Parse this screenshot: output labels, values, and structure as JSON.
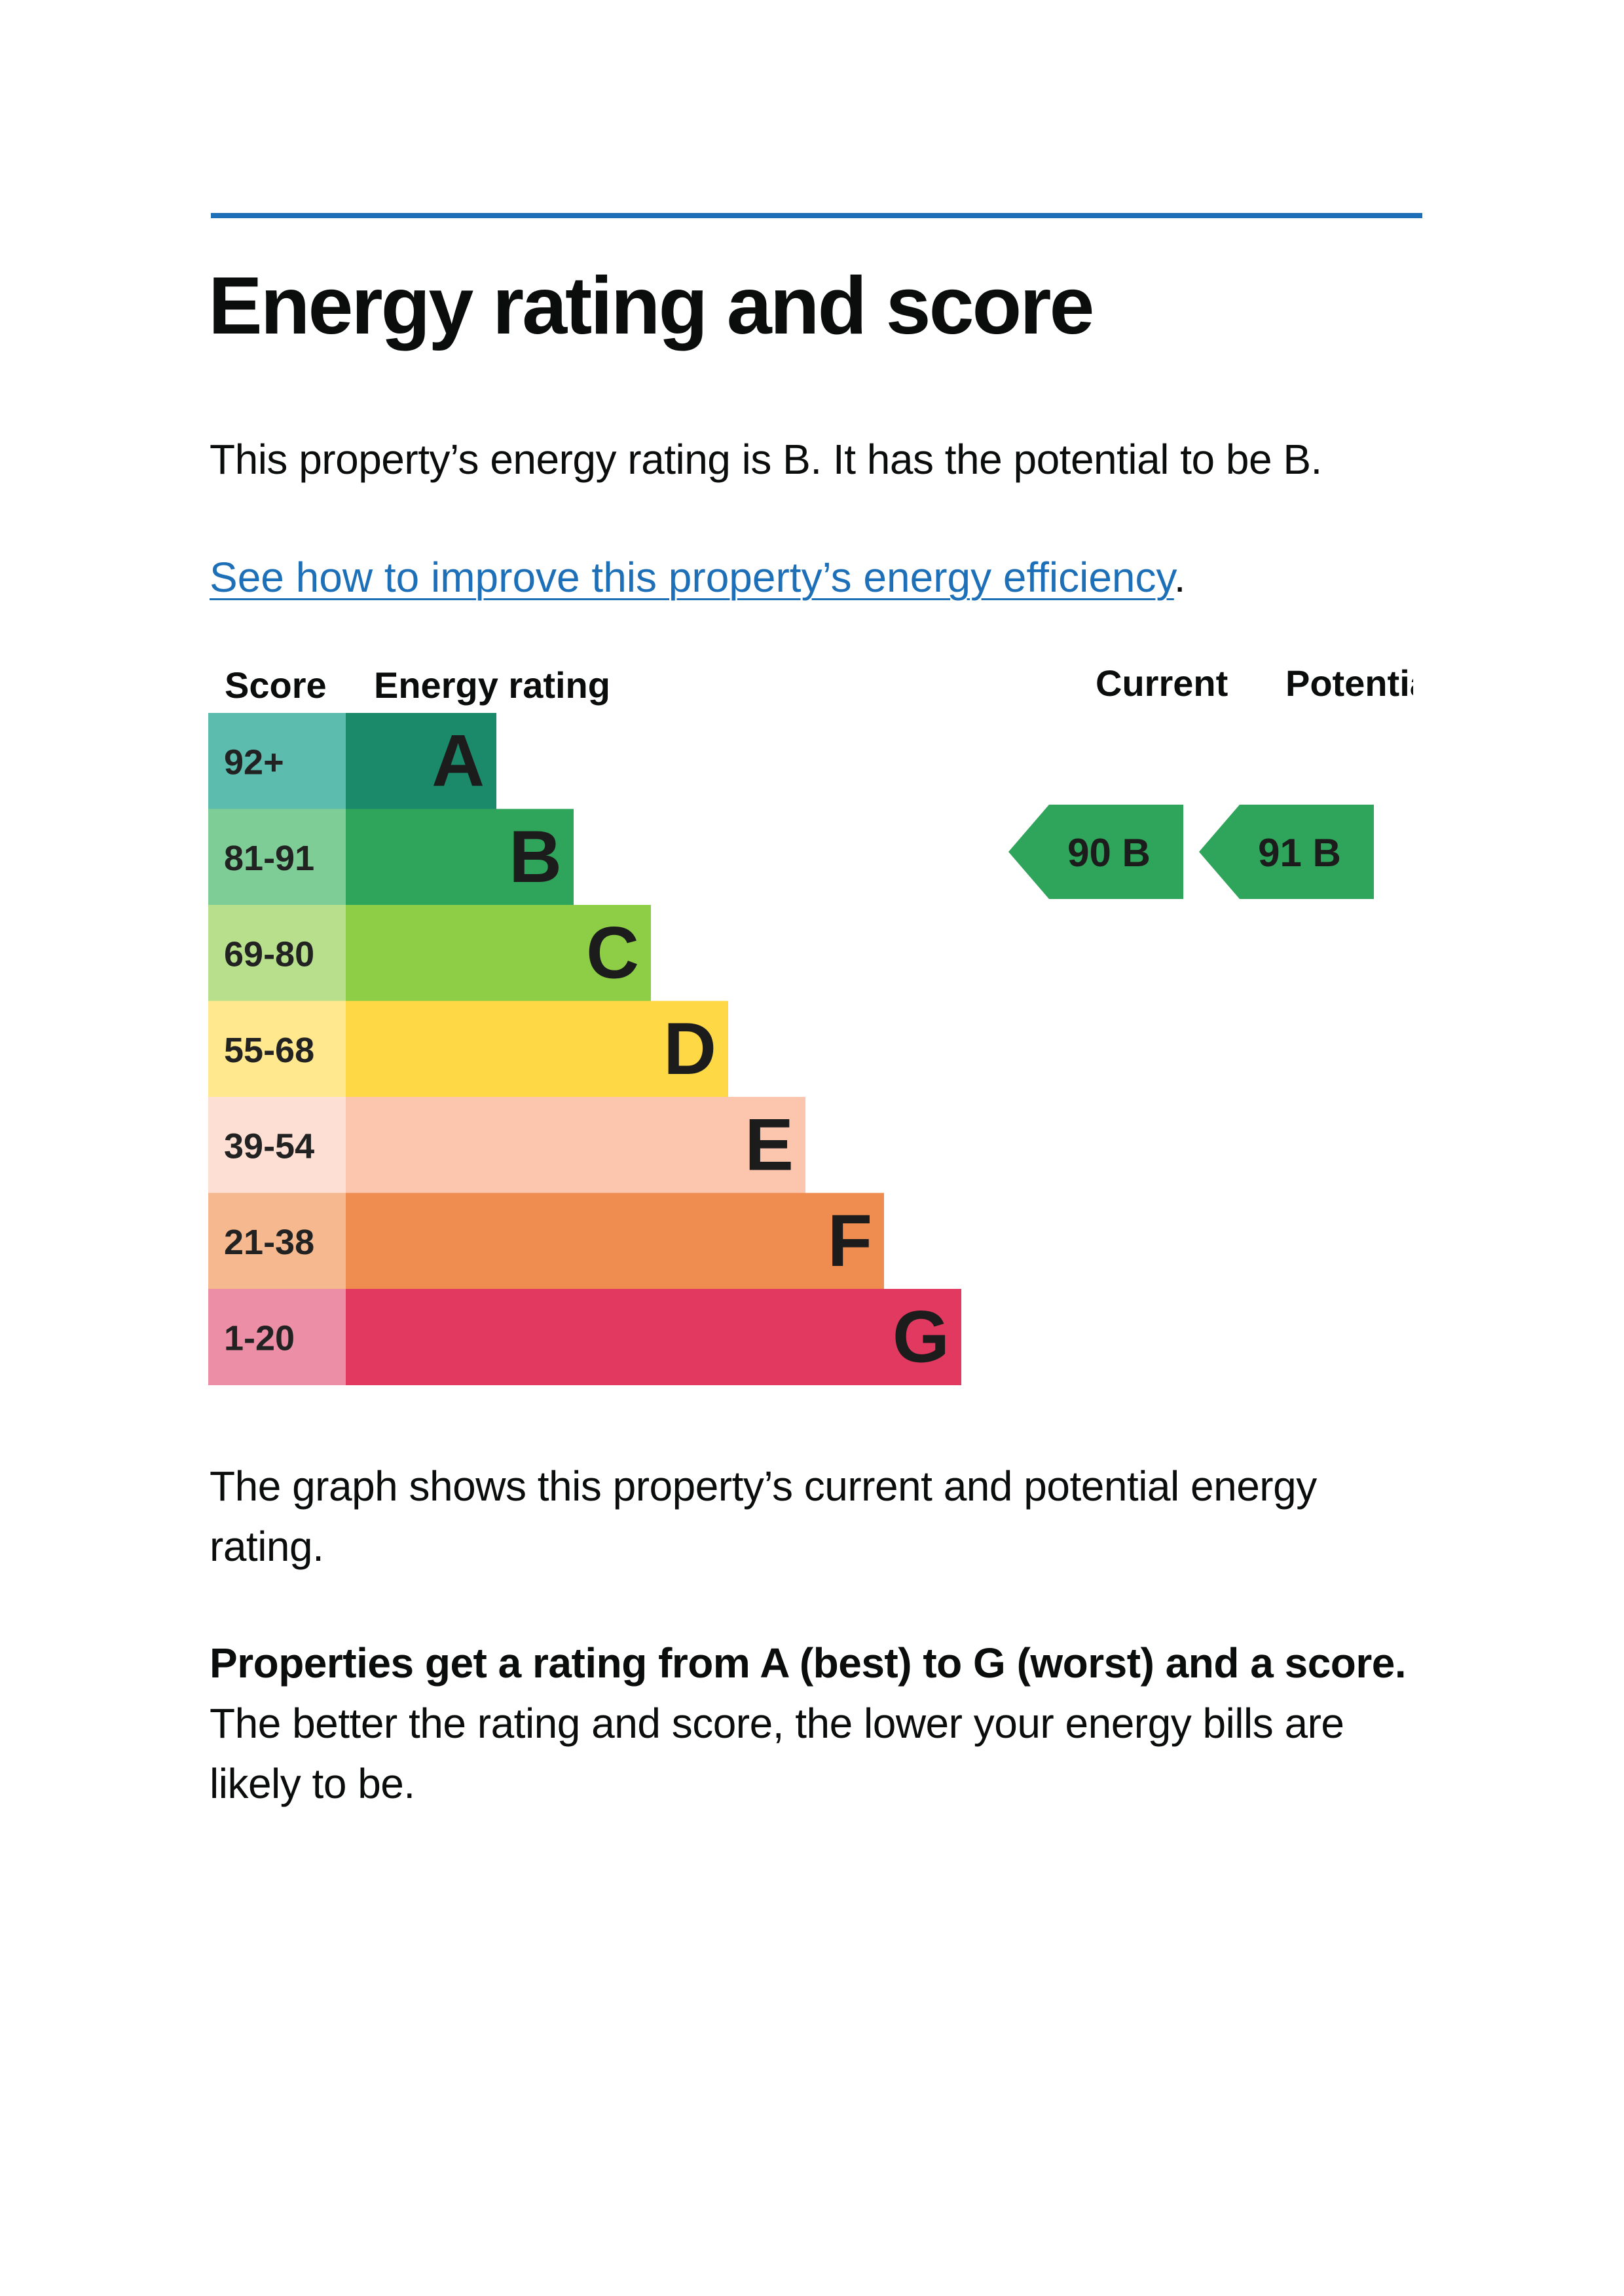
{
  "page": {
    "title": "Energy rating and score",
    "intro": "This property’s energy rating is B. It has the potential to be B.",
    "link_text": "See how to improve this property’s energy efficiency",
    "link_suffix": ".",
    "graph_caption": "The graph shows this property’s current and potential energy rating.",
    "summary_bold": "Properties get a rating from A (best) to G (worst) and a score.",
    "summary_rest": " The better the rating and score, the lower your energy bills are likely to be."
  },
  "chart_data": {
    "type": "bar",
    "headers": {
      "score": "Score",
      "rating": "Energy rating",
      "current": "Current",
      "potential": "Potential"
    },
    "bands": [
      {
        "letter": "A",
        "range": "92+",
        "color": "#1a8a6b",
        "score_bg": "#5cbcad"
      },
      {
        "letter": "B",
        "range": "81-91",
        "color": "#2ea55a",
        "score_bg": "#7fcd96"
      },
      {
        "letter": "C",
        "range": "69-80",
        "color": "#8dce46",
        "score_bg": "#b8e08c"
      },
      {
        "letter": "D",
        "range": "55-68",
        "color": "#ffd845",
        "score_bg": "#ffe88e"
      },
      {
        "letter": "E",
        "range": "39-54",
        "color": "#fcc5ae",
        "score_bg": "#fde0d3"
      },
      {
        "letter": "F",
        "range": "21-38",
        "color": "#ef8c4f",
        "score_bg": "#f6b98f"
      },
      {
        "letter": "G",
        "range": "1-20",
        "color": "#e1395f",
        "score_bg": "#ec8fa6"
      }
    ],
    "current": {
      "score": 90,
      "band": "B",
      "label": "90 B"
    },
    "potential": {
      "score": 91,
      "band": "B",
      "label": "91 B"
    }
  }
}
